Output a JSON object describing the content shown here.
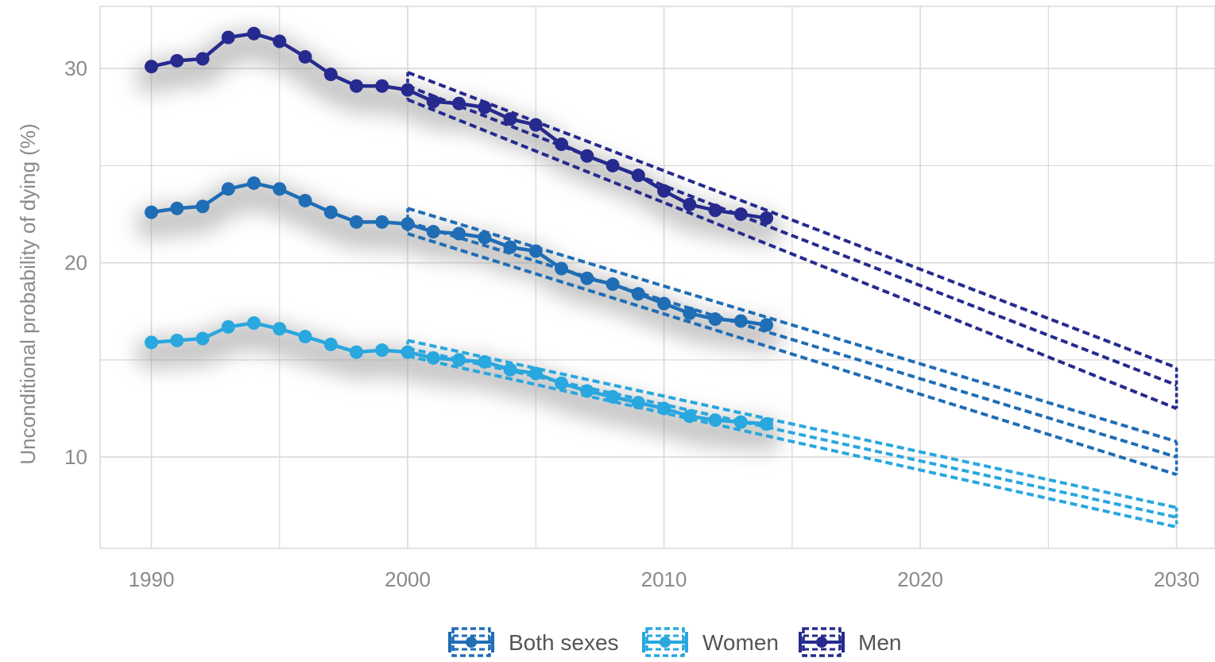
{
  "chart_data": {
    "type": "line",
    "title": "",
    "xlabel": "",
    "ylabel": "Unconditional probability of dying (%)",
    "xlim": [
      1988,
      2031.5
    ],
    "ylim": [
      5.3,
      33.2
    ],
    "x_ticks": [
      1990,
      2000,
      2010,
      2020,
      2030
    ],
    "y_ticks": [
      10,
      20,
      30
    ],
    "grid": true,
    "legend_position": "bottom",
    "colors": {
      "Both sexes": "#1f6db5",
      "Women": "#29a7df",
      "Men": "#262a8e",
      "grid": "#d9d9d9",
      "halo": "#9a9a9a"
    },
    "x": [
      1990,
      1991,
      1992,
      1993,
      1994,
      1995,
      1996,
      1997,
      1998,
      1999,
      2000,
      2001,
      2002,
      2003,
      2004,
      2005,
      2006,
      2007,
      2008,
      2009,
      2010,
      2011,
      2012,
      2013,
      2014
    ],
    "series": [
      {
        "name": "Men",
        "values": [
          30.1,
          30.4,
          30.5,
          31.6,
          31.8,
          31.4,
          30.6,
          29.7,
          29.1,
          29.1,
          28.9,
          28.3,
          28.2,
          28.0,
          27.4,
          27.1,
          26.1,
          25.5,
          25.0,
          24.5,
          23.7,
          23.0,
          22.7,
          22.5,
          22.3
        ],
        "projection": {
          "x": [
            2000,
            2030
          ],
          "upper": [
            29.8,
            14.6
          ],
          "central": [
            29.1,
            13.7
          ],
          "lower": [
            28.4,
            12.5
          ]
        }
      },
      {
        "name": "Both sexes",
        "values": [
          22.6,
          22.8,
          22.9,
          23.8,
          24.1,
          23.8,
          23.2,
          22.6,
          22.1,
          22.1,
          22.0,
          21.6,
          21.5,
          21.3,
          20.8,
          20.6,
          19.7,
          19.2,
          18.9,
          18.4,
          17.9,
          17.4,
          17.1,
          17.0,
          16.8
        ],
        "projection": {
          "x": [
            2000,
            2030
          ],
          "upper": [
            22.8,
            10.8
          ],
          "central": [
            22.1,
            10.0
          ],
          "lower": [
            21.5,
            9.1
          ]
        }
      },
      {
        "name": "Women",
        "values": [
          15.9,
          16.0,
          16.1,
          16.7,
          16.9,
          16.6,
          16.2,
          15.8,
          15.4,
          15.5,
          15.4,
          15.1,
          15.0,
          14.9,
          14.5,
          14.3,
          13.8,
          13.4,
          13.1,
          12.8,
          12.5,
          12.1,
          11.9,
          11.8,
          11.7
        ],
        "projection": {
          "x": [
            2000,
            2030
          ],
          "upper": [
            16.0,
            7.4
          ],
          "central": [
            15.6,
            6.9
          ],
          "lower": [
            15.2,
            6.4
          ]
        }
      }
    ],
    "legend": [
      "Both sexes",
      "Women",
      "Men"
    ]
  }
}
